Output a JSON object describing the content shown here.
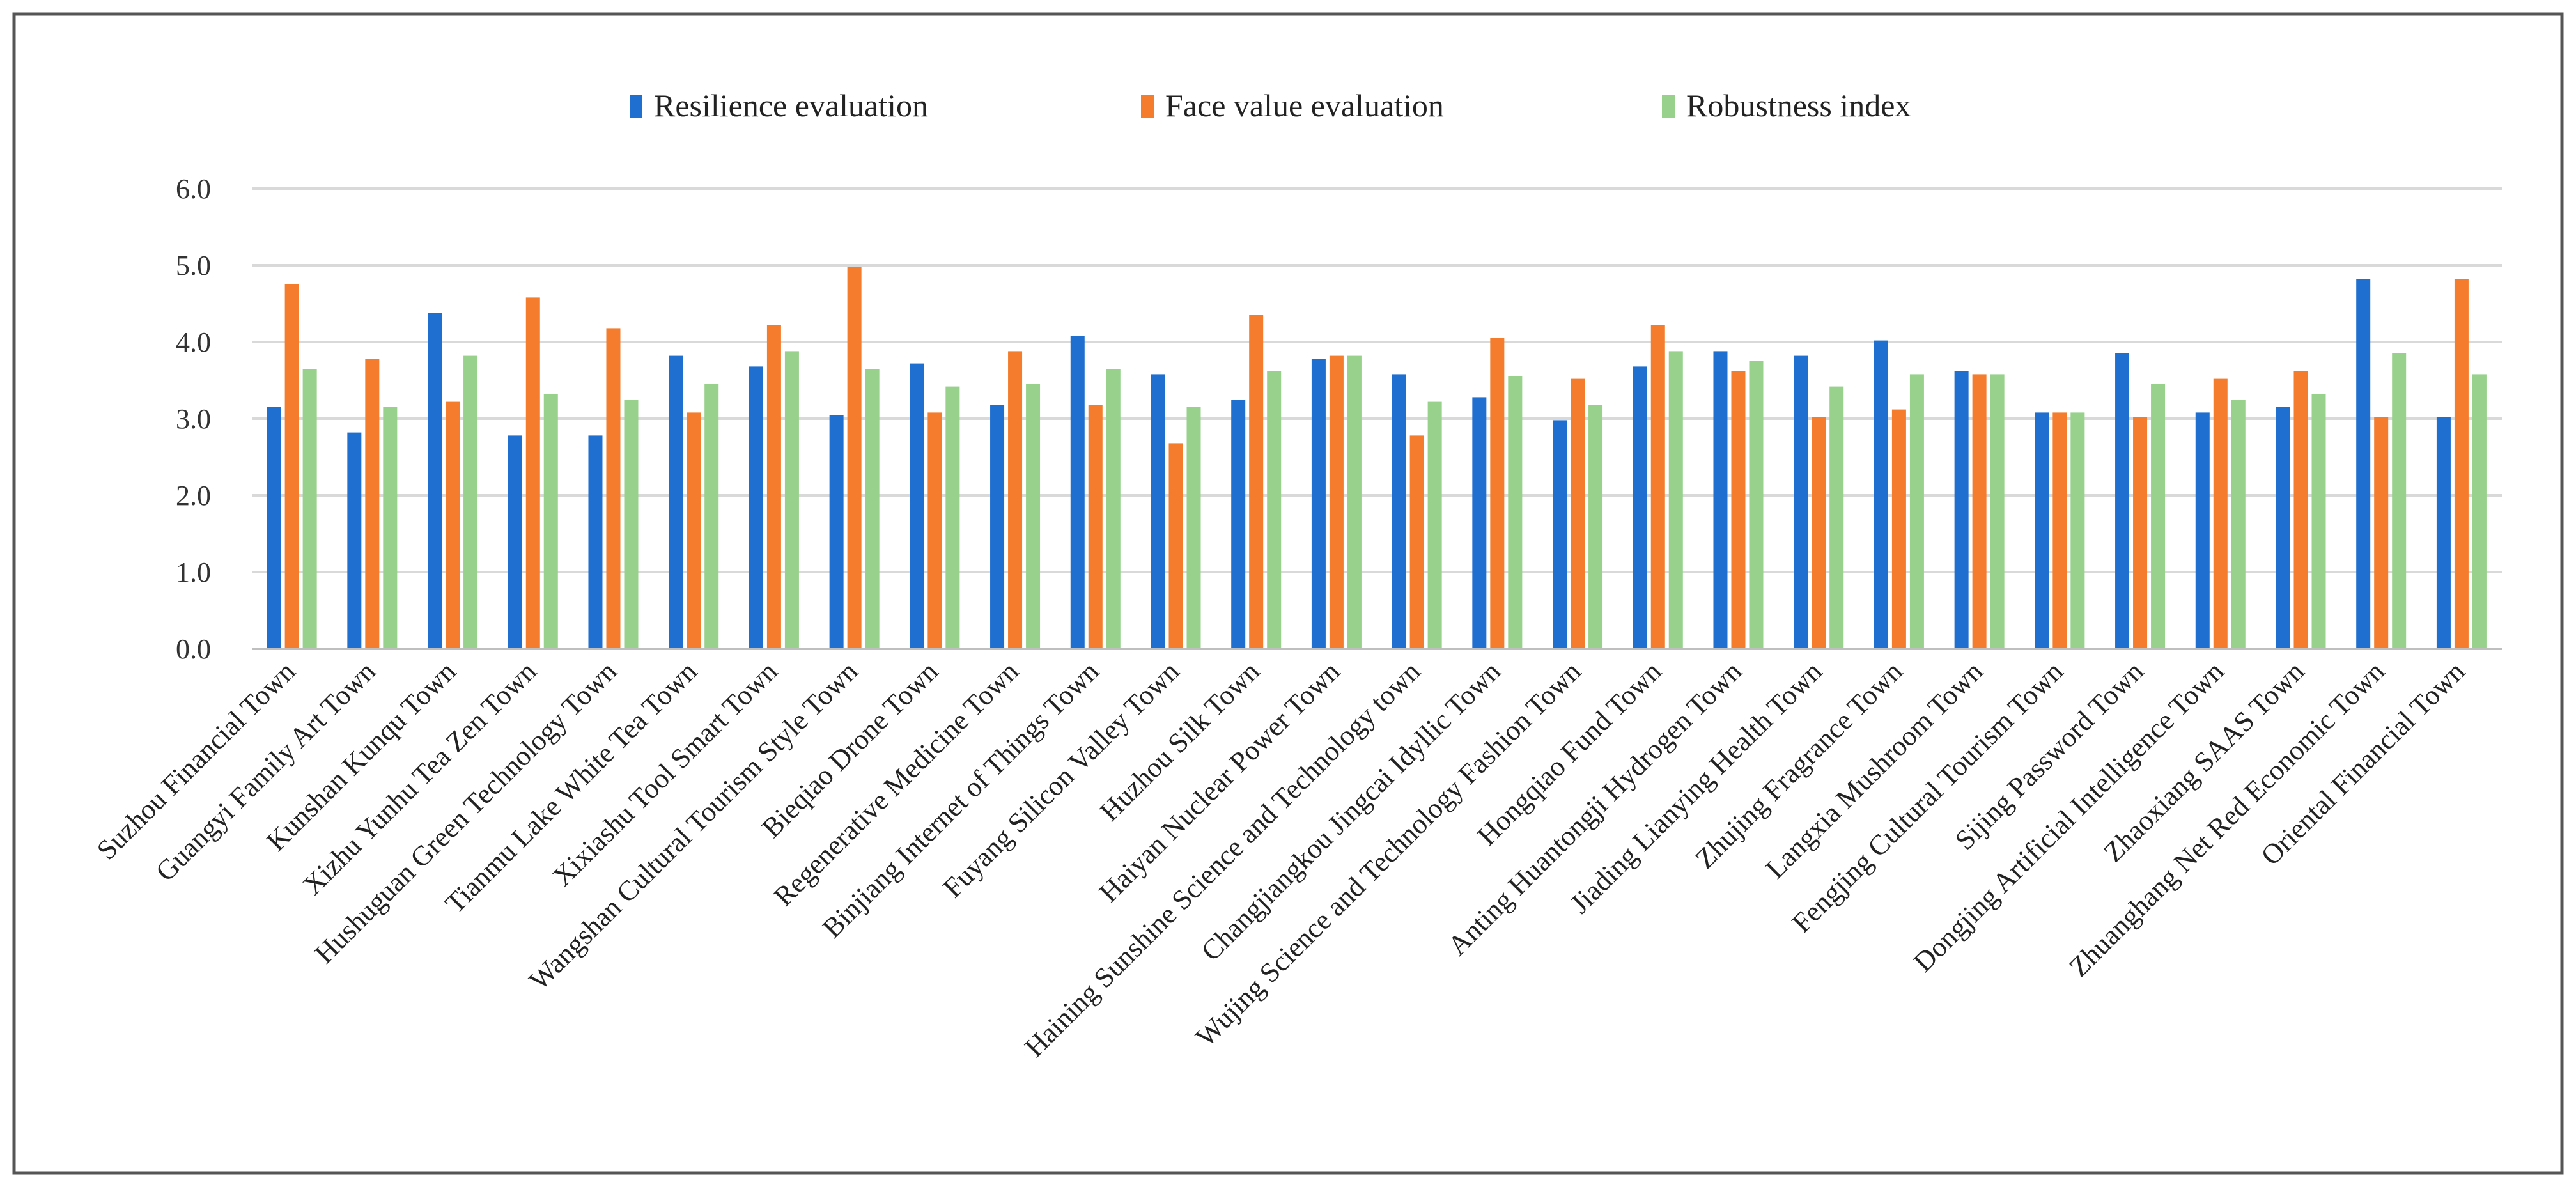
{
  "chart_data": {
    "type": "bar",
    "title": "",
    "xlabel": "",
    "ylabel": "",
    "ylim": [
      0,
      6
    ],
    "yticks": [
      "0.0",
      "1.0",
      "2.0",
      "3.0",
      "4.0",
      "5.0",
      "6.0"
    ],
    "grid": true,
    "legend_position": "top-center",
    "categories": [
      "Suzhou Financial Town",
      "Guangyi Family Art Town",
      "Kunshan Kunqu Town",
      "Xizhu Yunhu Tea Zen Town",
      "Hushuguan Green Technology Town",
      "Tianmu Lake White Tea Town",
      "Xixiashu Tool Smart Town",
      "Wangshan Cultural Tourism Style Town",
      "Bieqiao Drone Town",
      "Regenerative Medicine Town",
      "Binjiang Internet of Things Town",
      "Fuyang Silicon Valley Town",
      "Huzhou Silk Town",
      "Haiyan Nuclear Power Town",
      "Haining Sunshine Science and Technology town",
      "Changjiangkou Jingcai Idyllic Town",
      "Wujing Science and Technology Fashion Town",
      "Hongqiao Fund Town",
      "Anting Huantongji Hydrogen Town",
      "Jiading Lianying Health Town",
      "Zhujing Fragrance Town",
      "Langxia Mushroom Town",
      "Fengjing Cultural Tourism Town",
      "Sijing Password Town",
      "Dongjing Artificial Intelligence Town",
      "Zhaoxiang SAAS Town",
      "Zhuanghang Net Red Economic Town",
      "Oriental Financial Town"
    ],
    "series": [
      {
        "name": "Resilience evaluation",
        "color": "#1f6fd0",
        "values": [
          3.15,
          2.82,
          4.38,
          2.78,
          2.78,
          3.82,
          3.68,
          3.05,
          3.72,
          3.18,
          4.08,
          3.58,
          3.25,
          3.78,
          3.58,
          3.28,
          2.98,
          3.68,
          3.88,
          3.82,
          4.02,
          3.62,
          3.08,
          3.85,
          3.08,
          3.15,
          4.82,
          3.02
        ]
      },
      {
        "name": "Face value  evaluation",
        "color": "#f47c2c",
        "values": [
          4.75,
          3.78,
          3.22,
          4.58,
          4.18,
          3.08,
          4.22,
          4.98,
          3.08,
          3.88,
          3.18,
          2.68,
          4.35,
          3.82,
          2.78,
          4.05,
          3.52,
          4.22,
          3.62,
          3.02,
          3.12,
          3.58,
          3.08,
          3.02,
          3.52,
          3.62,
          3.02,
          4.82
        ]
      },
      {
        "name": "Robustness index",
        "color": "#97d18b",
        "values": [
          3.65,
          3.15,
          3.82,
          3.32,
          3.25,
          3.45,
          3.88,
          3.65,
          3.42,
          3.45,
          3.65,
          3.15,
          3.62,
          3.82,
          3.22,
          3.55,
          3.18,
          3.88,
          3.75,
          3.42,
          3.58,
          3.58,
          3.08,
          3.45,
          3.25,
          3.32,
          3.85,
          3.58
        ]
      }
    ]
  }
}
